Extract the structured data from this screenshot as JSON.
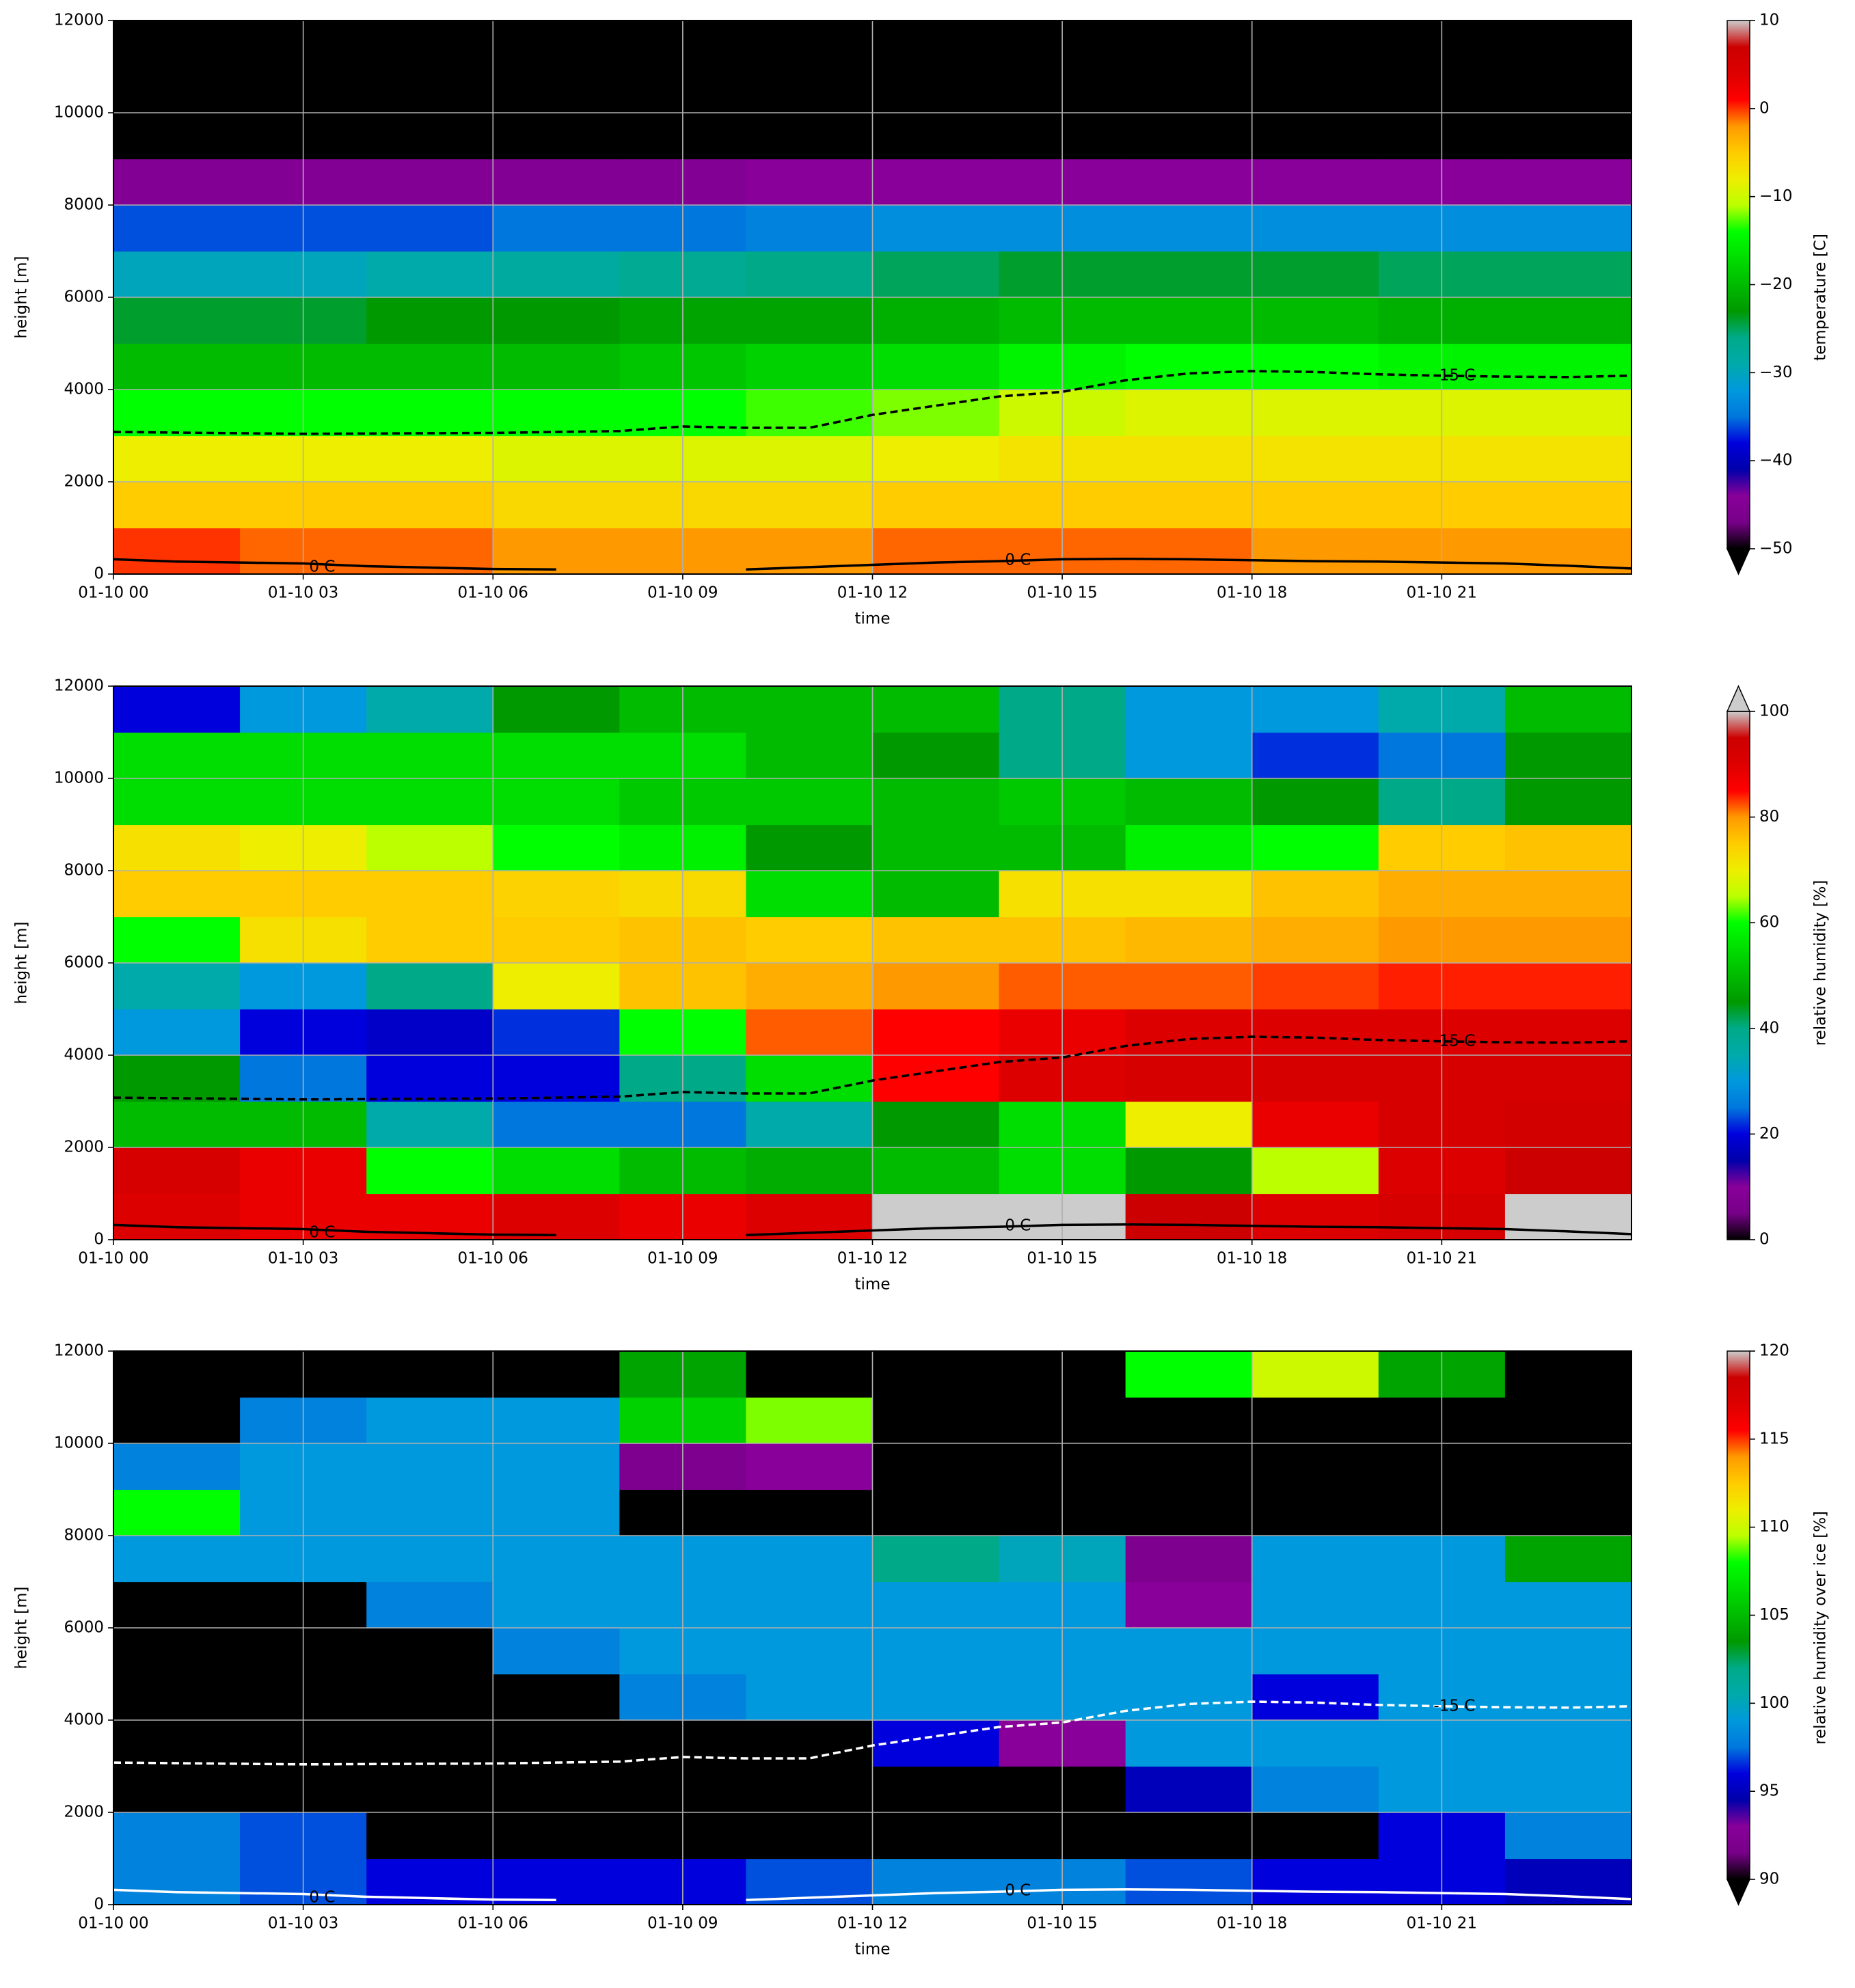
{
  "chart_data": [
    {
      "type": "heatmap",
      "xlabel": "time",
      "ylabel": "height [m]",
      "colormap": "nipy_spectral",
      "grid": true,
      "xlim": [
        0,
        24
      ],
      "ylim": [
        0,
        12000
      ],
      "xticks": [
        {
          "value": 0,
          "label": "01-10 00"
        },
        {
          "value": 3,
          "label": "01-10 03"
        },
        {
          "value": 6,
          "label": "01-10 06"
        },
        {
          "value": 9,
          "label": "01-10 09"
        },
        {
          "value": 12,
          "label": "01-10 12"
        },
        {
          "value": 15,
          "label": "01-10 15"
        },
        {
          "value": 18,
          "label": "01-10 18"
        },
        {
          "value": 21,
          "label": "01-10 21"
        }
      ],
      "yticks": [
        0,
        2000,
        4000,
        6000,
        8000,
        10000,
        12000
      ],
      "x": [
        1,
        3,
        5,
        7,
        9,
        11,
        13,
        15,
        17,
        19,
        21,
        23
      ],
      "y": [
        500,
        1500,
        2500,
        3500,
        4500,
        5500,
        6500,
        7500,
        8500,
        9500,
        10500,
        11500
      ],
      "z": [
        [
          0,
          -1,
          -1,
          -2,
          -2,
          -2,
          -1,
          -1,
          -1,
          -2,
          -2,
          -2
        ],
        [
          -5,
          -5,
          -5,
          -6,
          -6,
          -6,
          -5,
          -5,
          -5,
          -5,
          -5,
          -5
        ],
        [
          -8,
          -8,
          -8,
          -9,
          -9,
          -9,
          -8,
          -7,
          -7,
          -7,
          -7,
          -7
        ],
        [
          -14,
          -14,
          -14,
          -14,
          -14,
          -13,
          -12,
          -10,
          -9,
          -9,
          -9,
          -9
        ],
        [
          -20,
          -20,
          -20,
          -20,
          -19,
          -18,
          -17,
          -15,
          -14,
          -14,
          -15,
          -15
        ],
        [
          -24,
          -24,
          -23,
          -23,
          -22,
          -22,
          -21,
          -20,
          -20,
          -20,
          -21,
          -21
        ],
        [
          -30,
          -30,
          -29,
          -28,
          -27,
          -26,
          -25,
          -24,
          -24,
          -24,
          -25,
          -25
        ],
        [
          -36,
          -36,
          -36,
          -35,
          -35,
          -34,
          -33,
          -33,
          -33,
          -33,
          -33,
          -33
        ],
        [
          -45,
          -45,
          -45,
          -45,
          -45,
          -44,
          -44,
          -44,
          -44,
          -44,
          -44,
          -44
        ],
        [
          -55,
          -55,
          -55,
          -55,
          -55,
          -55,
          -55,
          -55,
          -55,
          -55,
          -55,
          -55
        ],
        [
          -58,
          -58,
          -58,
          -58,
          -58,
          -58,
          -58,
          -58,
          -58,
          -58,
          -58,
          -58
        ],
        [
          -60,
          -60,
          -60,
          -60,
          -60,
          -60,
          -60,
          -60,
          -60,
          -60,
          -60,
          -60
        ]
      ],
      "colorbar": {
        "label": "temperature [C]",
        "lim": [
          -50,
          10
        ],
        "extend": "min",
        "ticks": [
          {
            "value": -50,
            "label": "−50"
          },
          {
            "value": -40,
            "label": "−40"
          },
          {
            "value": -30,
            "label": "−30"
          },
          {
            "value": -20,
            "label": "−20"
          },
          {
            "value": -10,
            "label": "−10"
          },
          0,
          10
        ]
      },
      "contours": [
        {
          "label": "-15 C",
          "color": "#000000",
          "style": "dashed",
          "x": [
            0,
            3,
            6,
            8,
            9,
            10,
            11,
            12,
            13,
            14,
            15,
            16,
            17,
            18,
            19,
            20,
            21,
            22,
            23,
            24
          ],
          "values": [
            3080,
            3040,
            3060,
            3100,
            3200,
            3170,
            3170,
            3450,
            3650,
            3850,
            3950,
            4200,
            4350,
            4400,
            4380,
            4330,
            4300,
            4280,
            4270,
            4300
          ]
        },
        {
          "label": "0 C",
          "color": "#000000",
          "style": "solid",
          "x": [
            0,
            1,
            2,
            3,
            4,
            5,
            6,
            7,
            8,
            10,
            11,
            12,
            13,
            14,
            15,
            16,
            17,
            18,
            19,
            20,
            21,
            22,
            23,
            24
          ],
          "values": [
            320,
            270,
            250,
            230,
            170,
            140,
            110,
            100,
            null,
            100,
            150,
            200,
            250,
            280,
            320,
            330,
            320,
            300,
            280,
            270,
            250,
            230,
            180,
            120
          ]
        }
      ]
    },
    {
      "type": "heatmap",
      "xlabel": "time",
      "ylabel": "height [m]",
      "colormap": "nipy_spectral",
      "grid": true,
      "xlim": [
        0,
        24
      ],
      "ylim": [
        0,
        12000
      ],
      "xticks": [
        {
          "value": 0,
          "label": "01-10 00"
        },
        {
          "value": 3,
          "label": "01-10 03"
        },
        {
          "value": 6,
          "label": "01-10 06"
        },
        {
          "value": 9,
          "label": "01-10 09"
        },
        {
          "value": 12,
          "label": "01-10 12"
        },
        {
          "value": 15,
          "label": "01-10 15"
        },
        {
          "value": 18,
          "label": "01-10 18"
        },
        {
          "value": 21,
          "label": "01-10 21"
        }
      ],
      "yticks": [
        0,
        2000,
        4000,
        6000,
        8000,
        10000,
        12000
      ],
      "x": [
        1,
        3,
        5,
        7,
        9,
        11,
        13,
        15,
        17,
        19,
        21,
        23
      ],
      "y": [
        500,
        1500,
        2500,
        3500,
        4500,
        5500,
        6500,
        7500,
        8500,
        9500,
        10500,
        11500
      ],
      "z": [
        [
          90,
          88,
          88,
          90,
          88,
          90,
          100,
          100,
          95,
          90,
          92,
          100
        ],
        [
          92,
          88,
          60,
          55,
          50,
          48,
          50,
          55,
          45,
          65,
          90,
          95
        ],
        [
          50,
          50,
          35,
          25,
          25,
          35,
          45,
          55,
          70,
          88,
          92,
          93
        ],
        [
          45,
          25,
          20,
          20,
          40,
          55,
          85,
          90,
          92,
          92,
          92,
          92
        ],
        [
          30,
          20,
          18,
          22,
          60,
          82,
          85,
          88,
          90,
          90,
          90,
          90
        ],
        [
          35,
          30,
          40,
          70,
          76,
          78,
          80,
          82,
          82,
          83,
          84,
          84
        ],
        [
          60,
          72,
          75,
          75,
          76,
          75,
          76,
          76,
          77,
          78,
          80,
          80
        ],
        [
          75,
          75,
          75,
          74,
          73,
          55,
          50,
          72,
          72,
          76,
          78,
          78
        ],
        [
          72,
          70,
          65,
          60,
          58,
          45,
          50,
          50,
          58,
          60,
          75,
          76
        ],
        [
          55,
          55,
          55,
          55,
          52,
          52,
          50,
          52,
          50,
          45,
          40,
          45
        ],
        [
          55,
          55,
          55,
          55,
          55,
          50,
          45,
          40,
          30,
          22,
          25,
          45
        ],
        [
          20,
          30,
          35,
          45,
          50,
          50,
          50,
          40,
          30,
          30,
          35,
          50
        ]
      ],
      "colorbar": {
        "label": "relative humidity [%]",
        "lim": [
          0,
          100
        ],
        "extend": "max",
        "ticks": [
          0,
          20,
          40,
          60,
          80,
          100
        ]
      },
      "contours": [
        {
          "label": "-15 C",
          "color": "#000000",
          "style": "dashed",
          "x": [
            0,
            3,
            6,
            8,
            9,
            10,
            11,
            12,
            13,
            14,
            15,
            16,
            17,
            18,
            19,
            20,
            21,
            22,
            23,
            24
          ],
          "values": [
            3080,
            3040,
            3060,
            3100,
            3200,
            3170,
            3170,
            3450,
            3650,
            3850,
            3950,
            4200,
            4350,
            4400,
            4380,
            4330,
            4300,
            4280,
            4270,
            4300
          ]
        },
        {
          "label": "0 C",
          "color": "#000000",
          "style": "solid",
          "x": [
            0,
            1,
            2,
            3,
            4,
            5,
            6,
            7,
            8,
            10,
            11,
            12,
            13,
            14,
            15,
            16,
            17,
            18,
            19,
            20,
            21,
            22,
            23,
            24
          ],
          "values": [
            320,
            270,
            250,
            230,
            170,
            140,
            110,
            100,
            null,
            100,
            150,
            200,
            250,
            280,
            320,
            330,
            320,
            300,
            280,
            270,
            250,
            230,
            180,
            120
          ]
        }
      ]
    },
    {
      "type": "heatmap",
      "xlabel": "time",
      "ylabel": "height [m]",
      "colormap": "nipy_spectral",
      "grid": true,
      "xlim": [
        0,
        24
      ],
      "ylim": [
        0,
        12000
      ],
      "xticks": [
        {
          "value": 0,
          "label": "01-10 00"
        },
        {
          "value": 3,
          "label": "01-10 03"
        },
        {
          "value": 6,
          "label": "01-10 06"
        },
        {
          "value": 9,
          "label": "01-10 09"
        },
        {
          "value": 12,
          "label": "01-10 12"
        },
        {
          "value": 15,
          "label": "01-10 15"
        },
        {
          "value": 18,
          "label": "01-10 18"
        },
        {
          "value": 21,
          "label": "01-10 21"
        }
      ],
      "yticks": [
        0,
        2000,
        4000,
        6000,
        8000,
        10000,
        12000
      ],
      "x": [
        1,
        3,
        5,
        7,
        9,
        11,
        13,
        15,
        17,
        19,
        21,
        23
      ],
      "y": [
        500,
        1500,
        2500,
        3500,
        4500,
        5500,
        6500,
        7500,
        8500,
        9500,
        10500,
        11500
      ],
      "z": [
        [
          98,
          97,
          96,
          96,
          96,
          97,
          98,
          98,
          97,
          96,
          96,
          95
        ],
        [
          98,
          97,
          85,
          85,
          85,
          85,
          85,
          85,
          85,
          85,
          96,
          98
        ],
        [
          85,
          85,
          85,
          85,
          85,
          85,
          85,
          85,
          95,
          98,
          99,
          99
        ],
        [
          85,
          85,
          85,
          85,
          85,
          85,
          96,
          93,
          99,
          99,
          99,
          99
        ],
        [
          85,
          85,
          85,
          85,
          98,
          99,
          99,
          99,
          99,
          96,
          99,
          99
        ],
        [
          85,
          85,
          85,
          98,
          99,
          99,
          99,
          99,
          99,
          99,
          99,
          99
        ],
        [
          85,
          85,
          98,
          99,
          99,
          99,
          99,
          99,
          93,
          99,
          99,
          99
        ],
        [
          99,
          99,
          99,
          99,
          99,
          99,
          102,
          100,
          92,
          99,
          99,
          104
        ],
        [
          108,
          99,
          99,
          99,
          85,
          85,
          85,
          85,
          85,
          85,
          85,
          85
        ],
        [
          98,
          99,
          99,
          99,
          92,
          93,
          85,
          85,
          85,
          85,
          85,
          85
        ],
        [
          85,
          98,
          99,
          99,
          106,
          109,
          85,
          85,
          85,
          85,
          85,
          85
        ],
        [
          85,
          85,
          85,
          85,
          104,
          85,
          85,
          85,
          108,
          110,
          104,
          85
        ]
      ],
      "colorbar": {
        "label": "relative humidity over ice [%]",
        "lim": [
          90,
          120
        ],
        "extend": "min",
        "ticks": [
          90,
          95,
          100,
          105,
          110,
          115,
          120
        ]
      },
      "contours": [
        {
          "label": "-15 C",
          "color": "#ffffff",
          "style": "dashed",
          "x": [
            0,
            3,
            6,
            8,
            9,
            10,
            11,
            12,
            13,
            14,
            15,
            16,
            17,
            18,
            19,
            20,
            21,
            22,
            23,
            24
          ],
          "values": [
            3080,
            3040,
            3060,
            3100,
            3200,
            3170,
            3170,
            3450,
            3650,
            3850,
            3950,
            4200,
            4350,
            4400,
            4380,
            4330,
            4300,
            4280,
            4270,
            4300
          ]
        },
        {
          "label": "0 C",
          "color": "#ffffff",
          "style": "solid",
          "x": [
            0,
            1,
            2,
            3,
            4,
            5,
            6,
            7,
            8,
            10,
            11,
            12,
            13,
            14,
            15,
            16,
            17,
            18,
            19,
            20,
            21,
            22,
            23,
            24
          ],
          "values": [
            320,
            270,
            250,
            230,
            170,
            140,
            110,
            100,
            null,
            100,
            150,
            200,
            250,
            280,
            320,
            330,
            320,
            300,
            280,
            270,
            250,
            230,
            180,
            120
          ]
        }
      ]
    }
  ]
}
